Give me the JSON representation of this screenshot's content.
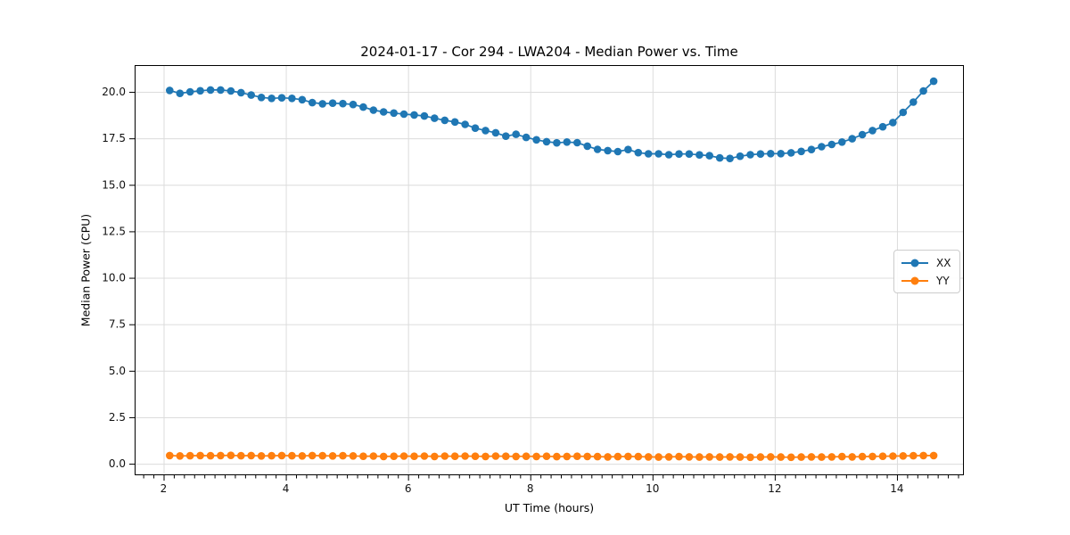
{
  "chart_data": {
    "type": "line",
    "title": "2024-01-17 - Cor 294 - LWA204 - Median Power vs. Time",
    "xlabel": "UT Time (hours)",
    "ylabel": "Median Power (CPU)",
    "xlim": [
      1.526,
      15.095
    ],
    "ylim": [
      -0.62,
      21.44
    ],
    "xticks": [
      2,
      4,
      6,
      8,
      10,
      12,
      14
    ],
    "yticks": [
      0.0,
      2.5,
      5.0,
      7.5,
      10.0,
      12.5,
      15.0,
      17.5,
      20.0
    ],
    "minor_xtick_step": 0.16667,
    "grid": true,
    "grid_color": "#dcdcdc",
    "spine_color": "#000000",
    "legend_position": "center right",
    "x": [
      2.1,
      2.267,
      2.433,
      2.6,
      2.767,
      2.933,
      3.1,
      3.267,
      3.433,
      3.6,
      3.767,
      3.933,
      4.1,
      4.267,
      4.433,
      4.6,
      4.767,
      4.933,
      5.1,
      5.267,
      5.433,
      5.6,
      5.767,
      5.933,
      6.1,
      6.267,
      6.433,
      6.6,
      6.767,
      6.933,
      7.1,
      7.267,
      7.433,
      7.6,
      7.767,
      7.933,
      8.1,
      8.267,
      8.433,
      8.6,
      8.767,
      8.933,
      9.1,
      9.267,
      9.433,
      9.6,
      9.767,
      9.933,
      10.1,
      10.267,
      10.433,
      10.6,
      10.767,
      10.933,
      11.1,
      11.267,
      11.433,
      11.6,
      11.767,
      11.933,
      12.1,
      12.267,
      12.433,
      12.6,
      12.767,
      12.933,
      13.1,
      13.267,
      13.433,
      13.6,
      13.767,
      13.933,
      14.1,
      14.267,
      14.433,
      14.6
    ],
    "series": [
      {
        "name": "XX",
        "color": "#1f77b4",
        "values": [
          20.08,
          19.92,
          20.0,
          20.06,
          20.1,
          20.1,
          20.05,
          19.96,
          19.83,
          19.7,
          19.65,
          19.68,
          19.65,
          19.58,
          19.42,
          19.36,
          19.39,
          19.37,
          19.32,
          19.18,
          19.02,
          18.92,
          18.86,
          18.8,
          18.76,
          18.7,
          18.58,
          18.47,
          18.38,
          18.25,
          18.05,
          17.92,
          17.8,
          17.62,
          17.72,
          17.55,
          17.42,
          17.32,
          17.26,
          17.3,
          17.27,
          17.08,
          16.91,
          16.84,
          16.79,
          16.9,
          16.73,
          16.67,
          16.67,
          16.62,
          16.66,
          16.66,
          16.61,
          16.57,
          16.45,
          16.42,
          16.54,
          16.62,
          16.66,
          16.68,
          16.68,
          16.72,
          16.8,
          16.9,
          17.05,
          17.17,
          17.3,
          17.48,
          17.7,
          17.92,
          18.12,
          18.35,
          18.9,
          19.45,
          20.05,
          20.57
        ]
      },
      {
        "name": "YY",
        "color": "#ff7f0e",
        "values": [
          0.44,
          0.42,
          0.43,
          0.44,
          0.43,
          0.44,
          0.45,
          0.43,
          0.44,
          0.42,
          0.43,
          0.44,
          0.43,
          0.42,
          0.44,
          0.43,
          0.42,
          0.43,
          0.42,
          0.4,
          0.41,
          0.39,
          0.4,
          0.41,
          0.4,
          0.41,
          0.39,
          0.41,
          0.4,
          0.41,
          0.4,
          0.39,
          0.41,
          0.4,
          0.39,
          0.4,
          0.39,
          0.4,
          0.38,
          0.39,
          0.4,
          0.39,
          0.38,
          0.37,
          0.38,
          0.39,
          0.38,
          0.37,
          0.36,
          0.37,
          0.38,
          0.37,
          0.36,
          0.37,
          0.36,
          0.37,
          0.36,
          0.35,
          0.36,
          0.37,
          0.36,
          0.35,
          0.36,
          0.37,
          0.36,
          0.37,
          0.38,
          0.37,
          0.38,
          0.39,
          0.4,
          0.41,
          0.42,
          0.43,
          0.44,
          0.44
        ]
      }
    ]
  }
}
